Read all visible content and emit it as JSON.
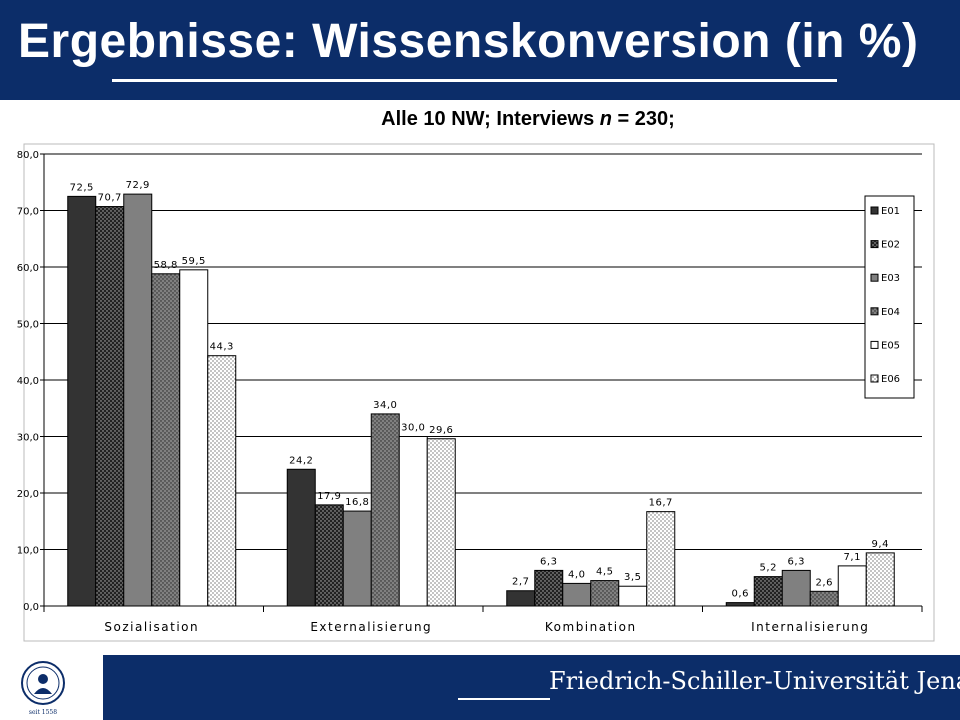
{
  "header": {
    "title": "Ergebnisse: Wissenskonversion  (in %)"
  },
  "subtitle": {
    "prefix": "Alle 10 NW; Interviews ",
    "n_symbol": "n",
    "suffix": " = 230;"
  },
  "footer": {
    "university": "Friedrich-Schiller-Universität Jena",
    "seal_caption": "seit 1558"
  },
  "chart_data": {
    "type": "bar",
    "title": "Alle 10 NW; Interviews n = 230;",
    "categories": [
      "Sozialisation",
      "Externalisierung",
      "Kombination",
      "Internalisierung"
    ],
    "series": [
      {
        "name": "E01",
        "values": [
          72.5,
          24.2,
          2.7,
          0.6
        ],
        "labels": [
          "72,5",
          "24,2",
          "2,7",
          "0,6"
        ],
        "color": "#333333",
        "pattern": "solid"
      },
      {
        "name": "E02",
        "values": [
          70.7,
          17.9,
          6.3,
          5.2
        ],
        "labels": [
          "70,7",
          "17,9",
          "6,3",
          "5,2"
        ],
        "color": "#222222",
        "pattern": "dots-light"
      },
      {
        "name": "E03",
        "values": [
          72.9,
          16.8,
          4.0,
          6.3
        ],
        "labels": [
          "72,9",
          "16,8",
          "4,0",
          "6,3"
        ],
        "color": "#808080",
        "pattern": "solid"
      },
      {
        "name": "E04",
        "values": [
          58.8,
          34.0,
          4.5,
          2.6
        ],
        "labels": [
          "58,8",
          "34,0",
          "4,5",
          "2,6"
        ],
        "color": "#808080",
        "pattern": "dots-dark"
      },
      {
        "name": "E05",
        "values": [
          59.5,
          30.0,
          3.5,
          7.1
        ],
        "labels": [
          "59,5",
          "30,0",
          "3,5",
          "7,1"
        ],
        "color": "#ffffff",
        "pattern": "solid"
      },
      {
        "name": "E06",
        "values": [
          44.3,
          29.6,
          16.7,
          9.4
        ],
        "labels": [
          "44,3",
          "29,6",
          "16,7",
          "9,4"
        ],
        "color": "#ffffff",
        "pattern": "dots-dark"
      }
    ],
    "yticks": [
      "0,0",
      "10,0",
      "20,0",
      "30,0",
      "40,0",
      "50,0",
      "60,0",
      "70,0",
      "80,0"
    ],
    "ylim": [
      0,
      80
    ],
    "grid": true,
    "legend_position": "right"
  }
}
